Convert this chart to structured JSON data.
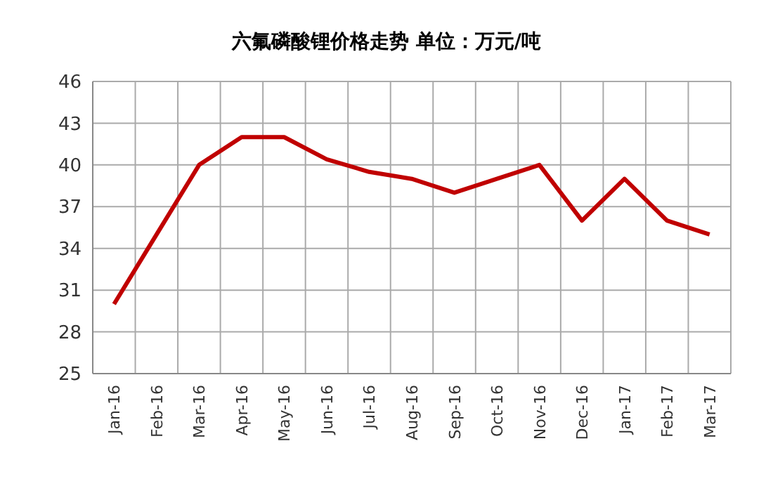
{
  "chart_data": {
    "type": "line",
    "title": "六氟磷酸锂价格走势 单位：万元/吨",
    "categories": [
      "Jan-16",
      "Feb-16",
      "Mar-16",
      "Apr-16",
      "May-16",
      "Jun-16",
      "Jul-16",
      "Aug-16",
      "Sep-16",
      "Oct-16",
      "Nov-16",
      "Dec-16",
      "Jan-17",
      "Feb-17",
      "Mar-17"
    ],
    "series": [
      {
        "color": "#c00000",
        "values": [
          30,
          35,
          40,
          42,
          42,
          40.4,
          39.5,
          39,
          38,
          39,
          40,
          36,
          39,
          36,
          35
        ]
      }
    ],
    "ylim": [
      25,
      46
    ],
    "yticks": [
      25,
      28,
      31,
      34,
      37,
      40,
      43,
      46
    ],
    "grid": true,
    "marker": "none",
    "line_style": "solid"
  }
}
